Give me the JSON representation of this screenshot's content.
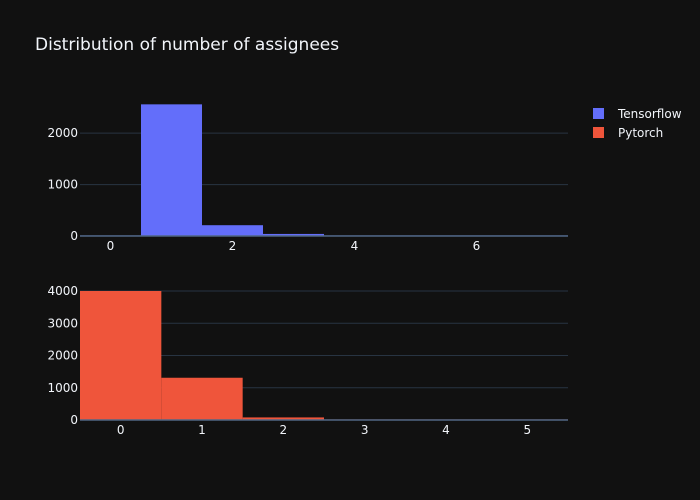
{
  "chart_data": [
    {
      "type": "bar",
      "title": "Distribution of number of assignees",
      "xlabel": "",
      "ylabel": "",
      "xlim": [
        -0.5,
        7.5
      ],
      "ylim": [
        0,
        2800
      ],
      "x_ticks": [
        "0",
        "2",
        "4",
        "6"
      ],
      "y_ticks": [
        "0",
        "1000",
        "2000"
      ],
      "grid": true,
      "series": [
        {
          "name": "Tensorflow",
          "color": "#636efa",
          "bins": [
            {
              "x0": -0.5,
              "x1": 0.5,
              "value": 5
            },
            {
              "x0": 0.5,
              "x1": 1.5,
              "value": 2560
            },
            {
              "x0": 1.5,
              "x1": 2.5,
              "value": 210
            },
            {
              "x0": 2.5,
              "x1": 3.5,
              "value": 40
            },
            {
              "x0": 3.5,
              "x1": 4.5,
              "value": 10
            },
            {
              "x0": 4.5,
              "x1": 5.5,
              "value": 3
            },
            {
              "x0": 5.5,
              "x1": 6.5,
              "value": 2
            },
            {
              "x0": 6.5,
              "x1": 7.5,
              "value": 1
            }
          ]
        }
      ]
    },
    {
      "type": "bar",
      "xlabel": "",
      "ylabel": "",
      "xlim": [
        -0.5,
        5.5
      ],
      "ylim": [
        0,
        4000
      ],
      "x_ticks": [
        "0",
        "1",
        "2",
        "3",
        "4",
        "5"
      ],
      "y_ticks": [
        "0",
        "1000",
        "2000",
        "3000",
        "4000"
      ],
      "grid": true,
      "series": [
        {
          "name": "Pytorch",
          "color": "#ef553b",
          "bins": [
            {
              "x0": -0.5,
              "x1": 0.5,
              "value": 4000
            },
            {
              "x0": 0.5,
              "x1": 1.5,
              "value": 1310
            },
            {
              "x0": 1.5,
              "x1": 2.5,
              "value": 80
            },
            {
              "x0": 2.5,
              "x1": 3.5,
              "value": 8
            },
            {
              "x0": 3.5,
              "x1": 4.5,
              "value": 3
            },
            {
              "x0": 4.5,
              "x1": 5.5,
              "value": 2
            }
          ]
        }
      ]
    }
  ],
  "legend": {
    "placement": "top-right",
    "items": [
      {
        "label": "Tensorflow",
        "color": "#636efa"
      },
      {
        "label": "Pytorch",
        "color": "#ef553b"
      }
    ]
  }
}
